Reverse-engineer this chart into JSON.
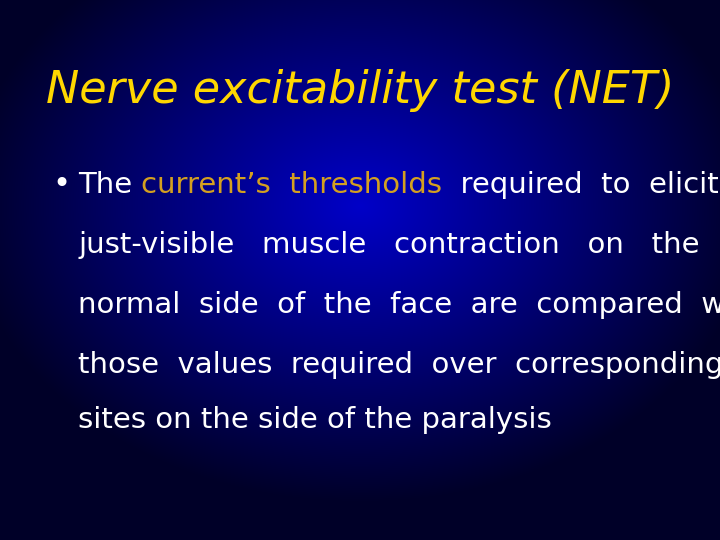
{
  "title": "Nerve excitability test (NET)",
  "title_color": "#FFD700",
  "title_fontsize": 32,
  "white_color": "#FFFFFF",
  "yellow_orange_color": "#D4A020",
  "body_fontsize": 21,
  "bullet_char": "•",
  "line1_pre": "The ",
  "line1_yellow": "current’s  thresholds",
  "line1_post": "  required  to  elicit",
  "line2": "just-visible   muscle   contraction   on   the",
  "line3": "normal  side  of  the  face  are  compared  with",
  "line4": "those  values  required  over  corresponding",
  "line5": "sites on the side of the paralysis",
  "fig_width": 7.2,
  "fig_height": 5.4,
  "dpi": 100
}
